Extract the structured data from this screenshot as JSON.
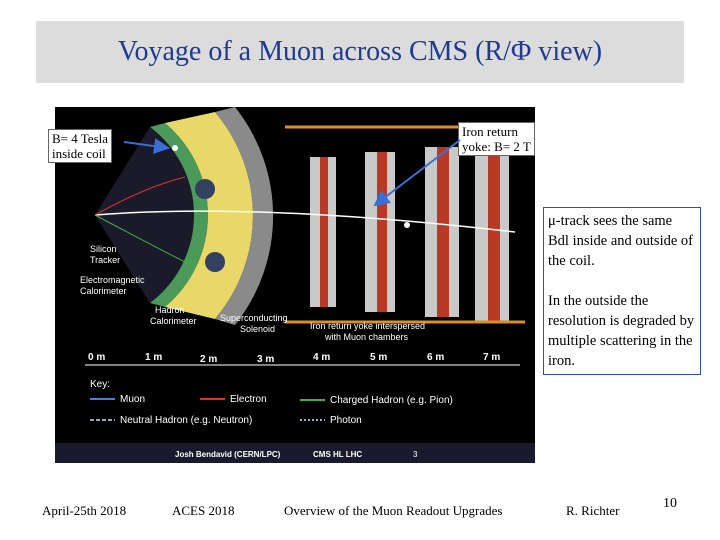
{
  "slide": {
    "title": "Voyage of a Muon across CMS (R/Φ view)",
    "callout_field": [
      "B= 4 Tesla",
      "inside coil"
    ],
    "callout_yoke": [
      "Iron return",
      "yoke: B= 2 T"
    ],
    "note": {
      "paragraph1": "μ-track sees the same Bdl inside and outside of the coil.",
      "paragraph2": "In the outside the resolution is degraded by multiple scattering in the iron."
    },
    "footer": {
      "date": "April-25th 2018",
      "event": "ACES 2018",
      "topic": "Overview of the Muon Readout Upgrades",
      "author": "R. Richter",
      "page": "10"
    }
  },
  "figure": {
    "labels": {
      "silicon_tracker": [
        "Silicon",
        "Tracker"
      ],
      "ecal": [
        "Electromagnetic",
        "Calorimeter"
      ],
      "hcal": [
        "Hadron",
        "Calorimeter"
      ],
      "solenoid": [
        "Superconducting",
        "Solenoid"
      ],
      "yoke": [
        "Iron return yoke interspersed",
        "with Muon chambers"
      ]
    },
    "scale": [
      "0 m",
      "1 m",
      "2 m",
      "3 m",
      "4 m",
      "5 m",
      "6 m",
      "7 m"
    ],
    "key": {
      "title": "Key:",
      "muon": "Muon",
      "electron": "Electron",
      "charged_hadron": "Charged Hadron (e.g. Pion)",
      "neutral_hadron": "Neutral Hadron (e.g. Neutron)",
      "photon": "Photon"
    },
    "credit": {
      "name": "Josh Bendavid (CERN/LPC)",
      "tag": "CMS HL LHC",
      "num": "3"
    },
    "colors": {
      "muon": "#4a7fd4",
      "electron": "#e03030",
      "charged_hadron": "#40b040",
      "neutral_hadron": "#9aa0c8",
      "photon": "#8fb0e0",
      "hcal": "#e8d86a",
      "yoke": "#b83a25",
      "chamber": "#c9c9c9",
      "solenoid": "#9a9a9a"
    }
  }
}
